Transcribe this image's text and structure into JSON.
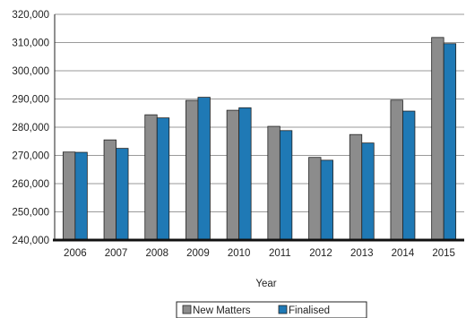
{
  "chart_data": {
    "type": "bar",
    "categories": [
      "2006",
      "2007",
      "2008",
      "2009",
      "2010",
      "2011",
      "2012",
      "2013",
      "2014",
      "2015"
    ],
    "series": [
      {
        "name": "New Matters",
        "values": [
          271200,
          275500,
          284400,
          289500,
          286000,
          280300,
          269300,
          277400,
          289600,
          311800
        ],
        "color": "#8c8c8c"
      },
      {
        "name": "Finalised",
        "values": [
          271100,
          272500,
          283300,
          290600,
          286900,
          278800,
          268300,
          274400,
          285700,
          309600
        ],
        "color": "#1f79b5"
      }
    ],
    "xlabel": "Year",
    "ylabel": "",
    "ylim": [
      240000,
      320000
    ],
    "yticks": [
      "240,000",
      "250,000",
      "260,000",
      "270,000",
      "280,000",
      "290,000",
      "300,000",
      "310,000",
      "320,000"
    ],
    "grid": true,
    "legend_position": "bottom"
  }
}
